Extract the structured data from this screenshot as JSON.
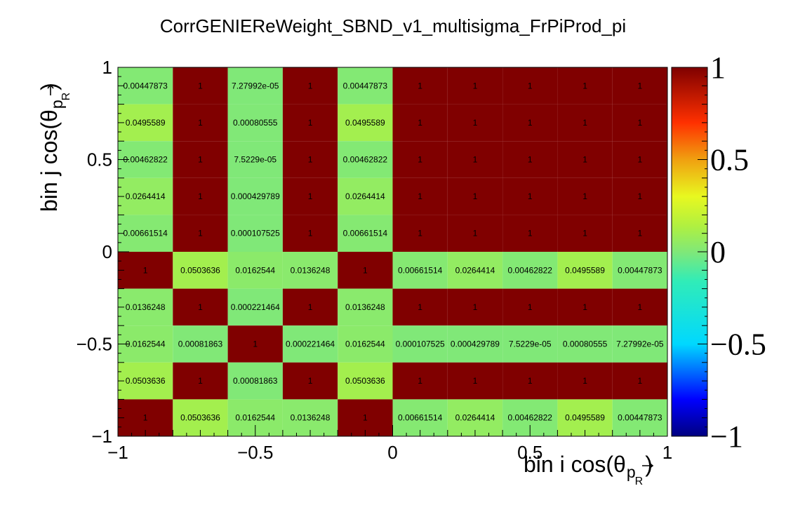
{
  "chart_data": {
    "type": "heatmap",
    "title": "CorrGENIEReWeight_SBND_v1_multisigma_FrPiProd_pi",
    "xlabel_main": "bin i cos(θ",
    "xlabel_sub": "p",
    "xlabel_subsub": "R",
    "xlabel_close": ")",
    "ylabel_main": "bin j cos(θ",
    "ylabel_sub": "p",
    "ylabel_subsub": "R",
    "ylabel_close": ")",
    "xlim": [
      -1,
      1
    ],
    "ylim": [
      -1,
      1
    ],
    "zlim": [
      -1,
      1
    ],
    "x_ticks": [
      "−1",
      "−0.5",
      "0",
      "0.5",
      "1"
    ],
    "y_ticks": [
      "−1",
      "−0.5",
      "0",
      "0.5",
      "1"
    ],
    "z_ticks": [
      "−1",
      "−0.5",
      "0",
      "0.5",
      "1"
    ],
    "x_edges": [
      -1,
      -0.8,
      -0.6,
      -0.4,
      -0.2,
      0,
      0.2,
      0.4,
      0.6,
      0.8,
      1
    ],
    "y_edges": [
      -1,
      -0.8,
      -0.6,
      -0.4,
      -0.2,
      0,
      0.2,
      0.4,
      0.6,
      0.8,
      1
    ],
    "rows_top_to_bottom": [
      [
        "0.00447873",
        "1",
        "7.27992e-05",
        "1",
        "0.00447873",
        "1",
        "1",
        "1",
        "1",
        "1"
      ],
      [
        "0.0495589",
        "1",
        "0.00080555",
        "1",
        "0.0495589",
        "1",
        "1",
        "1",
        "1",
        "1"
      ],
      [
        "0.00462822",
        "1",
        "7.5229e-05",
        "1",
        "0.00462822",
        "1",
        "1",
        "1",
        "1",
        "1"
      ],
      [
        "0.0264414",
        "1",
        "0.000429789",
        "1",
        "0.0264414",
        "1",
        "1",
        "1",
        "1",
        "1"
      ],
      [
        "0.00661514",
        "1",
        "0.000107525",
        "1",
        "0.00661514",
        "1",
        "1",
        "1",
        "1",
        "1"
      ],
      [
        "1",
        "0.0503636",
        "0.0162544",
        "0.0136248",
        "1",
        "0.00661514",
        "0.0264414",
        "0.00462822",
        "0.0495589",
        "0.00447873"
      ],
      [
        "0.0136248",
        "1",
        "0.000221464",
        "1",
        "0.0136248",
        "1",
        "1",
        "1",
        "1",
        "1"
      ],
      [
        "0.0162544",
        "0.00081863",
        "1",
        "0.000221464",
        "0.0162544",
        "0.000107525",
        "0.000429789",
        "7.5229e-05",
        "0.00080555",
        "7.27992e-05"
      ],
      [
        "0.0503636",
        "1",
        "0.00081863",
        "1",
        "0.0503636",
        "1",
        "1",
        "1",
        "1",
        "1"
      ],
      [
        "1",
        "0.0503636",
        "0.0162544",
        "0.0136248",
        "1",
        "0.00661514",
        "0.0264414",
        "0.00462822",
        "0.0495589",
        "0.00447873"
      ]
    ]
  }
}
